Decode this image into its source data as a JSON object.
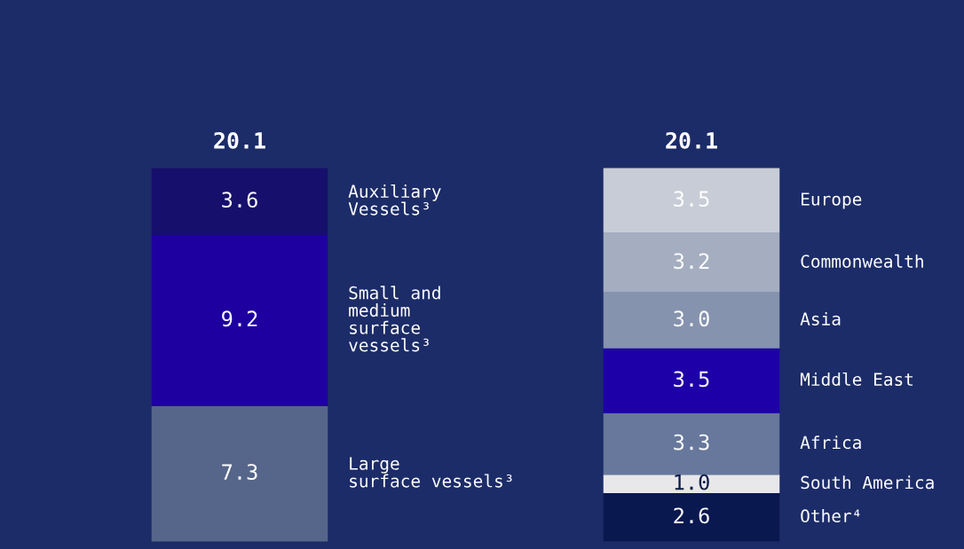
{
  "chart_data": [
    {
      "type": "bar",
      "stacked": true,
      "categories": [
        null
      ],
      "series": [
        {
          "name": "Large\nsurface vessels³",
          "color": "#56668a",
          "values": [
            7.3
          ],
          "value_labels": [
            "7.3"
          ]
        },
        {
          "name": "Small and\nmedium\nsurface\nvessels³",
          "color": "#1e00a0",
          "values": [
            9.2
          ],
          "value_labels": [
            "9.2"
          ]
        },
        {
          "name": "Auxiliary\nVessels³",
          "color": "#16106c",
          "values": [
            3.6
          ],
          "value_labels": [
            "3.6"
          ]
        }
      ],
      "totals": [
        "20.1"
      ],
      "legend": false
    },
    {
      "type": "bar",
      "stacked": true,
      "categories": [
        null
      ],
      "series": [
        {
          "name": "Other⁴",
          "color": "#0a1850",
          "values": [
            2.6
          ],
          "value_labels": [
            "2.6"
          ]
        },
        {
          "name": "South America",
          "color": "#e8e8ea",
          "values": [
            1.0
          ],
          "value_labels": [
            "1.0"
          ]
        },
        {
          "name": "Africa",
          "color": "#67789c",
          "values": [
            3.3
          ],
          "value_labels": [
            "3.3"
          ]
        },
        {
          "name": "Middle East",
          "color": "#1e00a8",
          "values": [
            3.5
          ],
          "value_labels": [
            "3.5"
          ]
        },
        {
          "name": "Asia",
          "color": "#8593ae",
          "values": [
            3.0
          ],
          "value_labels": [
            "3.0"
          ]
        },
        {
          "name": "Commonwealth",
          "color": "#a4aec0",
          "values": [
            3.2
          ],
          "value_labels": [
            "3.2"
          ]
        },
        {
          "name": "Europe",
          "color": "#c8ccd6",
          "values": [
            3.5
          ],
          "value_labels": [
            "3.5"
          ]
        }
      ],
      "totals": [
        "20.1"
      ],
      "legend": false
    }
  ]
}
